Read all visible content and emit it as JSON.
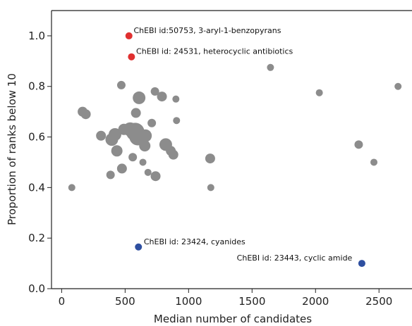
{
  "chart_data": {
    "type": "scatter",
    "title": "",
    "xlabel": "Median number of candidates",
    "ylabel": "Proportion of ranks below 10",
    "xlim": [
      -80,
      2760
    ],
    "ylim": [
      0,
      1.1
    ],
    "xticks": [
      0,
      500,
      1000,
      1500,
      2000,
      2500
    ],
    "yticks": [
      0.0,
      0.2,
      0.4,
      0.6,
      0.8,
      1.0
    ],
    "xtick_labels": [
      "0",
      "500",
      "1000",
      "1500",
      "2000",
      "2500"
    ],
    "ytick_labels": [
      "0.0",
      "0.2",
      "0.4",
      "0.6",
      "0.8",
      "1.0"
    ],
    "grid": false,
    "colors": {
      "default": "#8c8c8c",
      "highlight_high": "#e03030",
      "highlight_low": "#2e4fa0"
    },
    "points": [
      {
        "x": 80,
        "y": 0.4,
        "size": 5,
        "group": "default"
      },
      {
        "x": 165,
        "y": 0.7,
        "size": 7,
        "group": "default"
      },
      {
        "x": 190,
        "y": 0.69,
        "size": 7,
        "group": "default"
      },
      {
        "x": 310,
        "y": 0.605,
        "size": 7,
        "group": "default"
      },
      {
        "x": 385,
        "y": 0.45,
        "size": 6,
        "group": "default"
      },
      {
        "x": 395,
        "y": 0.59,
        "size": 9,
        "group": "default"
      },
      {
        "x": 420,
        "y": 0.61,
        "size": 9,
        "group": "default"
      },
      {
        "x": 435,
        "y": 0.545,
        "size": 8,
        "group": "default"
      },
      {
        "x": 470,
        "y": 0.805,
        "size": 6,
        "group": "default"
      },
      {
        "x": 475,
        "y": 0.475,
        "size": 7,
        "group": "default"
      },
      {
        "x": 490,
        "y": 0.63,
        "size": 8,
        "group": "default"
      },
      {
        "x": 540,
        "y": 0.63,
        "size": 10,
        "group": "default"
      },
      {
        "x": 560,
        "y": 0.52,
        "size": 6,
        "group": "default"
      },
      {
        "x": 580,
        "y": 0.62,
        "size": 13,
        "group": "default"
      },
      {
        "x": 585,
        "y": 0.695,
        "size": 7,
        "group": "default"
      },
      {
        "x": 600,
        "y": 0.6,
        "size": 12,
        "group": "default"
      },
      {
        "x": 610,
        "y": 0.755,
        "size": 9,
        "group": "default"
      },
      {
        "x": 640,
        "y": 0.5,
        "size": 5,
        "group": "default"
      },
      {
        "x": 655,
        "y": 0.565,
        "size": 8,
        "group": "default"
      },
      {
        "x": 660,
        "y": 0.605,
        "size": 9,
        "group": "default"
      },
      {
        "x": 680,
        "y": 0.46,
        "size": 5,
        "group": "default"
      },
      {
        "x": 710,
        "y": 0.655,
        "size": 6,
        "group": "default"
      },
      {
        "x": 735,
        "y": 0.78,
        "size": 6,
        "group": "default"
      },
      {
        "x": 740,
        "y": 0.445,
        "size": 7,
        "group": "default"
      },
      {
        "x": 790,
        "y": 0.76,
        "size": 7,
        "group": "default"
      },
      {
        "x": 820,
        "y": 0.57,
        "size": 9,
        "group": "default"
      },
      {
        "x": 860,
        "y": 0.545,
        "size": 7,
        "group": "default"
      },
      {
        "x": 880,
        "y": 0.53,
        "size": 7,
        "group": "default"
      },
      {
        "x": 900,
        "y": 0.75,
        "size": 5,
        "group": "default"
      },
      {
        "x": 905,
        "y": 0.665,
        "size": 5,
        "group": "default"
      },
      {
        "x": 1170,
        "y": 0.515,
        "size": 7,
        "group": "default"
      },
      {
        "x": 1175,
        "y": 0.4,
        "size": 5,
        "group": "default"
      },
      {
        "x": 1645,
        "y": 0.875,
        "size": 5,
        "group": "default"
      },
      {
        "x": 2030,
        "y": 0.775,
        "size": 5,
        "group": "default"
      },
      {
        "x": 2340,
        "y": 0.57,
        "size": 6,
        "group": "default"
      },
      {
        "x": 2460,
        "y": 0.5,
        "size": 5,
        "group": "default"
      },
      {
        "x": 2650,
        "y": 0.8,
        "size": 5,
        "group": "default"
      },
      {
        "x": 530,
        "y": 1.0,
        "size": 5,
        "group": "highlight_high"
      },
      {
        "x": 550,
        "y": 0.917,
        "size": 5,
        "group": "highlight_high"
      },
      {
        "x": 605,
        "y": 0.165,
        "size": 5,
        "group": "highlight_low"
      },
      {
        "x": 2365,
        "y": 0.1,
        "size": 5,
        "group": "highlight_low"
      }
    ],
    "annotations": [
      {
        "text": "ChEBI id:50753, 3-aryl-1-benzopyrans",
        "x": 545,
        "y": 1.0,
        "anchor": "start"
      },
      {
        "text": "ChEBI id: 24531, heterocyclic antibiotics",
        "x": 565,
        "y": 0.917,
        "anchor": "start"
      },
      {
        "text": "ChEBI id: 23424, cyanides",
        "x": 625,
        "y": 0.165,
        "anchor": "start"
      },
      {
        "text": "ChEBI id: 23443, cyclic amide",
        "x": 2345,
        "y": 0.1,
        "anchor": "end"
      }
    ]
  }
}
